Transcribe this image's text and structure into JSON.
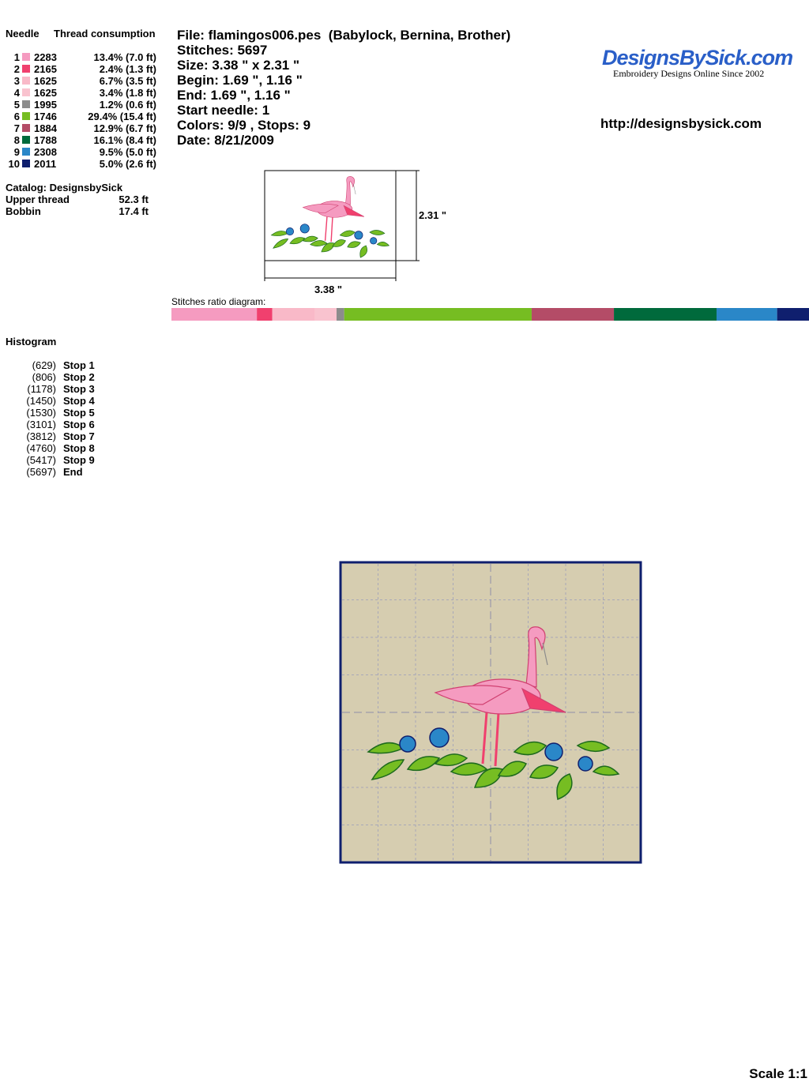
{
  "needles": {
    "header_needle": "Needle",
    "header_consumption": "Thread consumption",
    "rows": [
      {
        "number": 1,
        "code": "2283",
        "color": "#f59bc0",
        "percent": 13.4,
        "consumption": "13.4% (7.0 ft)"
      },
      {
        "number": 2,
        "code": "2165",
        "color": "#f0406e",
        "percent": 2.4,
        "consumption": "2.4% (1.3 ft)"
      },
      {
        "number": 3,
        "code": "1625",
        "color": "#f9b9c8",
        "percent": 6.7,
        "consumption": "6.7% (3.5 ft)"
      },
      {
        "number": 4,
        "code": "1625",
        "color": "#f9c3cf",
        "percent": 3.4,
        "consumption": "3.4% (1.8 ft)"
      },
      {
        "number": 5,
        "code": "1995",
        "color": "#8c8c8c",
        "percent": 1.2,
        "consumption": "1.2% (0.6 ft)"
      },
      {
        "number": 6,
        "code": "1746",
        "color": "#76bd22",
        "percent": 29.4,
        "consumption": "29.4% (15.4 ft)"
      },
      {
        "number": 7,
        "code": "1884",
        "color": "#b44c67",
        "percent": 12.9,
        "consumption": "12.9% (6.7 ft)"
      },
      {
        "number": 8,
        "code": "1788",
        "color": "#006a3c",
        "percent": 16.1,
        "consumption": "16.1% (8.4 ft)"
      },
      {
        "number": 9,
        "code": "2308",
        "color": "#2a87c8",
        "percent": 9.5,
        "consumption": "9.5% (5.0 ft)"
      },
      {
        "number": 10,
        "code": "2011",
        "color": "#0f1f6e",
        "percent": 5.0,
        "consumption": "5.0% (2.6 ft)"
      }
    ]
  },
  "catalog": {
    "title": "Catalog: DesignsbySick",
    "upper_label": "Upper thread",
    "upper_value": "52.3 ft",
    "bobbin_label": "Bobbin",
    "bobbin_value": "17.4 ft"
  },
  "histogram": {
    "title": "Histogram",
    "stops": [
      {
        "count": "(629)",
        "label": "Stop 1"
      },
      {
        "count": "(806)",
        "label": "Stop 2"
      },
      {
        "count": "(1178)",
        "label": "Stop 3"
      },
      {
        "count": "(1450)",
        "label": "Stop 4"
      },
      {
        "count": "(1530)",
        "label": "Stop 5"
      },
      {
        "count": "(3101)",
        "label": "Stop 6"
      },
      {
        "count": "(3812)",
        "label": "Stop 7"
      },
      {
        "count": "(4760)",
        "label": "Stop 8"
      },
      {
        "count": "(5417)",
        "label": "Stop 9"
      },
      {
        "count": "(5697)",
        "label": "End"
      }
    ]
  },
  "info": [
    "File: flamingos006.pes  (Babylock, Bernina, Brother)",
    "Stitches: 5697",
    "Size: 3.38 \" x 2.31 \"",
    "Begin: 1.69 \", 1.16 \"",
    "End: 1.69 \", 1.16 \"",
    "Start needle: 1",
    "Colors: 9/9 , Stops: 9",
    "Date: 8/21/2009"
  ],
  "logo": {
    "title": "DesignsBySick.com",
    "tagline": "Embroidery Designs Online Since 2002",
    "url": "http://designsbysick.com"
  },
  "thumbnail": {
    "height_label": "2.31 \"",
    "width_label": "3.38 \""
  },
  "ratio": {
    "title": "Stitches ratio diagram:"
  },
  "scale": "Scale 1:1"
}
